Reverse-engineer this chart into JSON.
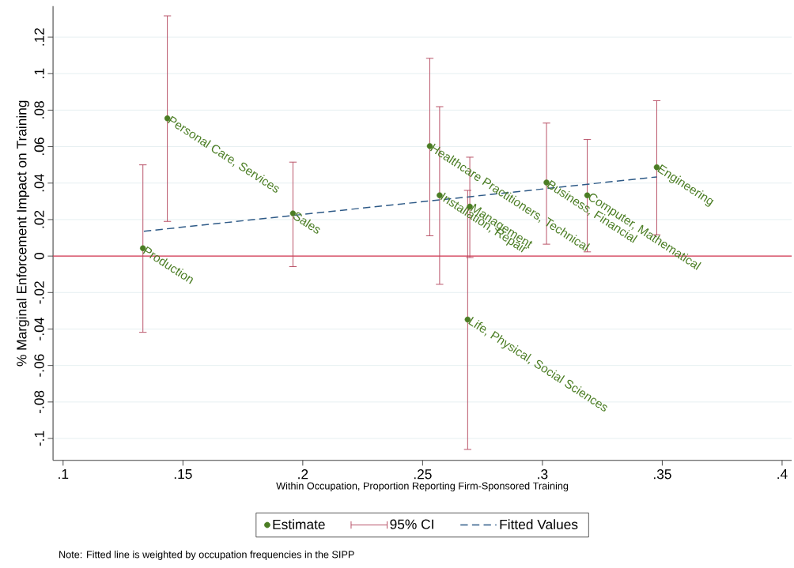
{
  "chart_data": {
    "type": "scatter",
    "xlabel": "Within Occupation, Proportion Reporting Firm-Sponsored Training",
    "ylabel": "% Marginal Enforcement Impact on Training",
    "xlim": [
      0.0958,
      0.404
    ],
    "ylim": [
      -0.112,
      0.137
    ],
    "xticks": [
      {
        "value": 0.1,
        "label": ".1"
      },
      {
        "value": 0.15,
        "label": ".15"
      },
      {
        "value": 0.2,
        "label": ".2"
      },
      {
        "value": 0.25,
        "label": ".25"
      },
      {
        "value": 0.3,
        "label": ".3"
      },
      {
        "value": 0.35,
        "label": ".35"
      },
      {
        "value": 0.4,
        "label": ".4"
      }
    ],
    "yticks": [
      {
        "value": -0.1,
        "label": "-.1"
      },
      {
        "value": -0.08,
        "label": "-.08"
      },
      {
        "value": -0.06,
        "label": "-.06"
      },
      {
        "value": -0.04,
        "label": "-.04"
      },
      {
        "value": -0.02,
        "label": "-.02"
      },
      0,
      {
        "value": 0.02,
        "label": ".02"
      },
      {
        "value": 0.04,
        "label": ".04"
      },
      {
        "value": 0.06,
        "label": ".06"
      },
      {
        "value": 0.08,
        "label": ".08"
      },
      {
        "value": 0.1,
        "label": ".1"
      },
      {
        "value": 0.12,
        "label": ".12"
      }
    ],
    "grid": "y",
    "legend": "bottom",
    "series": [
      {
        "name": "Estimate",
        "marker": "circle",
        "color": "#4b7d24",
        "x": [
          0.1333,
          0.1435,
          0.1959,
          0.253,
          0.2571,
          0.2697,
          0.2688,
          0.3017,
          0.3187,
          0.3477
        ],
        "values": [
          0.0043,
          0.0755,
          0.0234,
          0.0603,
          0.0333,
          0.0271,
          -0.0348,
          0.0403,
          0.0333,
          0.0487
        ],
        "errors": [
          [
            -0.0418,
            0.05
          ],
          [
            0.019,
            0.1317
          ],
          [
            -0.0058,
            0.0515
          ],
          [
            0.0111,
            0.1084
          ],
          [
            -0.0155,
            0.0819
          ],
          [
            -0.0008,
            0.0542
          ],
          [
            -0.106,
            0.036
          ],
          [
            0.0065,
            0.0729
          ],
          [
            0.0023,
            0.0639
          ],
          [
            0.0117,
            0.0852
          ]
        ]
      },
      {
        "name": "Fitted Values",
        "type": "line",
        "marker": "none",
        "line_style": "dashed",
        "color": "#2e5a87",
        "x": [
          0.1337,
          0.3477
        ],
        "values": [
          0.0136,
          0.0434
        ]
      }
    ],
    "ref_lines": [
      {
        "axis": "y",
        "value": 0,
        "color": "#d6354f"
      }
    ],
    "annotations": [
      "95% CI",
      {
        "text": "Production",
        "x": 0.1333,
        "y": 0.0043
      },
      {
        "text": "Personal Care, Services",
        "x": 0.1435,
        "y": 0.0755
      },
      {
        "text": "Sales",
        "x": 0.1959,
        "y": 0.0234
      },
      {
        "text": "Healthcare Practitioners, Technical",
        "x": 0.253,
        "y": 0.0603
      },
      {
        "text": "Installation, Repair",
        "x": 0.2571,
        "y": 0.0333
      },
      {
        "text": "Management",
        "x": 0.2697,
        "y": 0.0271
      },
      {
        "text": "Life, Physical, Social Sciences",
        "x": 0.2688,
        "y": -0.0348
      },
      {
        "text": "Business, Financial",
        "x": 0.3017,
        "y": 0.0403
      },
      {
        "text": "Computer, Mathematical",
        "x": 0.3187,
        "y": 0.0333
      },
      {
        "text": "Engineering",
        "x": 0.3477,
        "y": 0.0487
      },
      "Note: Fitted line is weighted by occupation frequencies in the SIPP"
    ]
  }
}
